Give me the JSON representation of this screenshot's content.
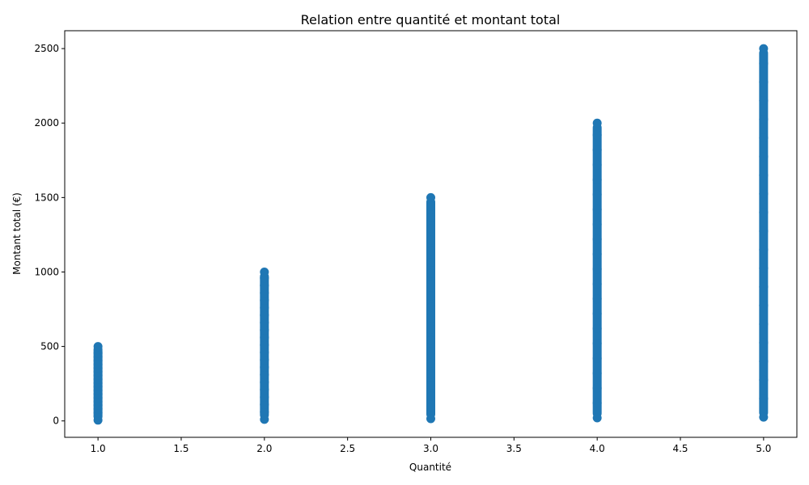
{
  "colors": {
    "marker": "#1f77b4",
    "axis": "#000000"
  },
  "chart_data": {
    "type": "scatter",
    "title": "Relation entre quantité et montant total",
    "xlabel": "Quantité",
    "ylabel": "Montant total (€)",
    "xlim": [
      0.8,
      5.2
    ],
    "ylim": [
      -110,
      2620
    ],
    "xticks": [
      1.0,
      1.5,
      2.0,
      2.5,
      3.0,
      3.5,
      4.0,
      4.5,
      5.0
    ],
    "xtick_labels": [
      "1.0",
      "1.5",
      "2.0",
      "2.5",
      "3.0",
      "3.5",
      "4.0",
      "4.5",
      "5.0"
    ],
    "yticks": [
      0,
      500,
      1000,
      1500,
      2000,
      2500
    ],
    "ytick_labels": [
      "0",
      "500",
      "1000",
      "1500",
      "2000",
      "2500"
    ],
    "grid": false,
    "legend": "none",
    "series": [
      {
        "x": [
          1,
          1,
          1,
          1,
          1,
          1,
          1,
          1,
          1,
          1,
          1,
          1,
          1,
          1,
          1,
          1,
          1,
          1,
          1,
          1,
          1,
          2,
          2,
          2,
          2,
          2,
          2,
          2,
          2,
          2,
          2,
          2,
          2,
          2,
          2,
          2,
          2,
          2,
          2,
          2,
          2,
          2,
          3,
          3,
          3,
          3,
          3,
          3,
          3,
          3,
          3,
          3,
          3,
          3,
          3,
          3,
          3,
          3,
          3,
          3,
          3,
          3,
          3,
          4,
          4,
          4,
          4,
          4,
          4,
          4,
          4,
          4,
          4,
          4,
          4,
          4,
          4,
          4,
          4,
          4,
          4,
          4,
          4,
          4,
          5,
          5,
          5,
          5,
          5,
          5,
          5,
          5,
          5,
          5,
          5,
          5,
          5,
          5,
          5,
          5,
          5,
          5,
          5,
          5,
          5
        ],
        "y": [
          5,
          30,
          55,
          80,
          105,
          130,
          155,
          180,
          205,
          230,
          255,
          280,
          305,
          330,
          355,
          380,
          405,
          430,
          455,
          480,
          500,
          10,
          60,
          110,
          160,
          210,
          260,
          310,
          360,
          410,
          460,
          510,
          560,
          610,
          660,
          710,
          760,
          810,
          860,
          910,
          960,
          1000,
          15,
          90,
          165,
          240,
          315,
          390,
          465,
          540,
          615,
          690,
          765,
          840,
          915,
          990,
          1065,
          1140,
          1215,
          1290,
          1365,
          1440,
          1500,
          20,
          120,
          220,
          320,
          420,
          520,
          620,
          720,
          820,
          920,
          1020,
          1120,
          1220,
          1320,
          1420,
          1520,
          1620,
          1720,
          1820,
          1920,
          2000,
          25,
          150,
          275,
          400,
          525,
          650,
          775,
          900,
          1025,
          1150,
          1275,
          1400,
          1525,
          1650,
          1775,
          1900,
          2025,
          2150,
          2275,
          2400,
          2500
        ]
      }
    ]
  }
}
